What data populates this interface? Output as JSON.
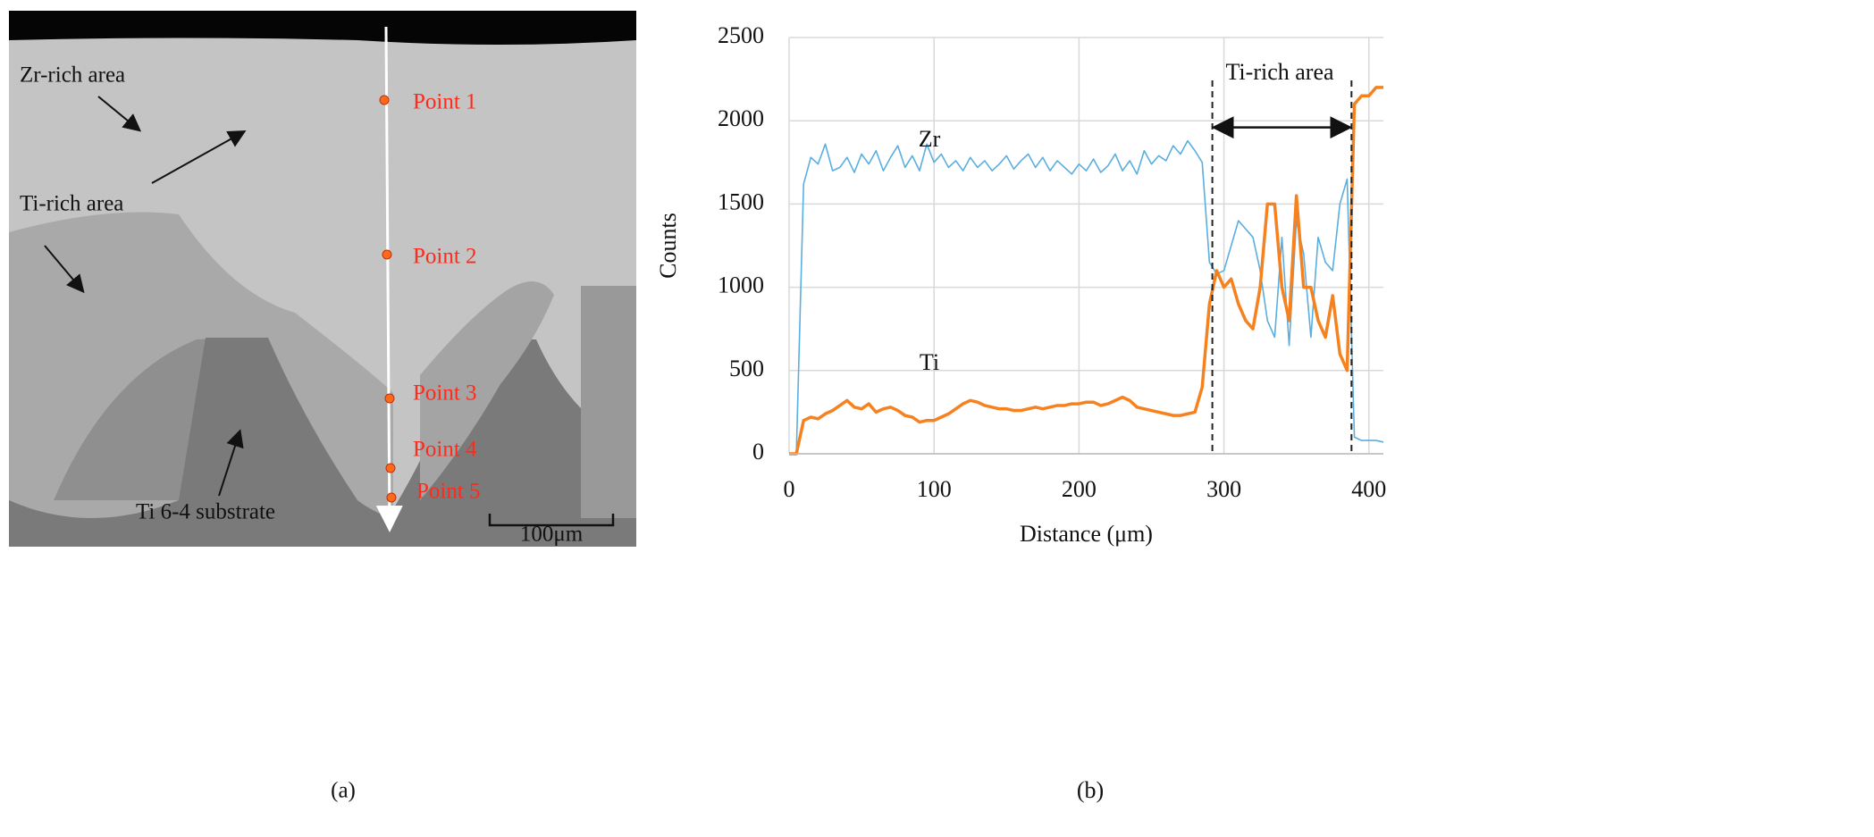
{
  "image_panel": {
    "labels": [
      "Zr-rich area",
      "Ti-rich area",
      "Ti 6-4 substrate"
    ],
    "points": [
      "Point 1",
      "Point 2",
      "Point 3",
      "Point 4",
      "Point 5"
    ],
    "scale_bar": "100μm",
    "caption": "(a)"
  },
  "chart_data": {
    "type": "line",
    "xlabel": "Distance (μm)",
    "ylabel": "Counts",
    "caption": "(b)",
    "annotations": [
      "Zr",
      "Ti",
      "Ti-rich area"
    ],
    "vlines": [
      292,
      388
    ],
    "xlim": [
      0,
      410
    ],
    "xticks": [
      0,
      100,
      200,
      300,
      400
    ],
    "ylim": [
      0,
      2500
    ],
    "yticks": [
      0,
      500,
      1000,
      1500,
      2000,
      2500
    ],
    "grid": true,
    "x": [
      0,
      5,
      10,
      15,
      20,
      25,
      30,
      35,
      40,
      45,
      50,
      55,
      60,
      65,
      70,
      75,
      80,
      85,
      90,
      95,
      100,
      105,
      110,
      115,
      120,
      125,
      130,
      135,
      140,
      145,
      150,
      155,
      160,
      165,
      170,
      175,
      180,
      185,
      190,
      195,
      200,
      205,
      210,
      215,
      220,
      225,
      230,
      235,
      240,
      245,
      250,
      255,
      260,
      265,
      270,
      275,
      280,
      285,
      290,
      295,
      300,
      305,
      310,
      315,
      320,
      325,
      330,
      335,
      340,
      345,
      350,
      355,
      360,
      365,
      370,
      375,
      380,
      385,
      390,
      395,
      400,
      405,
      410
    ],
    "series": [
      {
        "name": "Zr",
        "color": "#5aaee0",
        "width": 1.6,
        "values": [
          0,
          0,
          1620,
          1780,
          1740,
          1860,
          1700,
          1720,
          1780,
          1690,
          1800,
          1740,
          1820,
          1700,
          1780,
          1850,
          1720,
          1790,
          1700,
          1860,
          1750,
          1800,
          1720,
          1760,
          1700,
          1780,
          1720,
          1760,
          1700,
          1740,
          1790,
          1710,
          1760,
          1800,
          1720,
          1780,
          1700,
          1760,
          1720,
          1680,
          1740,
          1700,
          1770,
          1690,
          1730,
          1800,
          1700,
          1760,
          1680,
          1820,
          1740,
          1790,
          1760,
          1850,
          1800,
          1880,
          1820,
          1750,
          1150,
          1080,
          1100,
          1250,
          1400,
          1350,
          1300,
          1100,
          800,
          700,
          1300,
          650,
          1400,
          1200,
          700,
          1300,
          1150,
          1100,
          1500,
          1650,
          100,
          80,
          80,
          80,
          70
        ]
      },
      {
        "name": "Ti",
        "color": "#f5821f",
        "width": 3.5,
        "values": [
          0,
          0,
          200,
          220,
          210,
          240,
          260,
          290,
          320,
          280,
          270,
          300,
          250,
          270,
          280,
          260,
          230,
          220,
          190,
          200,
          200,
          220,
          240,
          270,
          300,
          320,
          310,
          290,
          280,
          270,
          270,
          260,
          260,
          270,
          280,
          270,
          280,
          290,
          290,
          300,
          300,
          310,
          310,
          290,
          300,
          320,
          340,
          320,
          280,
          270,
          260,
          250,
          240,
          230,
          230,
          240,
          250,
          400,
          900,
          1100,
          1000,
          1050,
          900,
          800,
          750,
          1000,
          1500,
          1500,
          1000,
          800,
          1550,
          1000,
          1000,
          800,
          700,
          950,
          600,
          500,
          2100,
          2150,
          2150,
          2200,
          2200
        ]
      }
    ]
  }
}
